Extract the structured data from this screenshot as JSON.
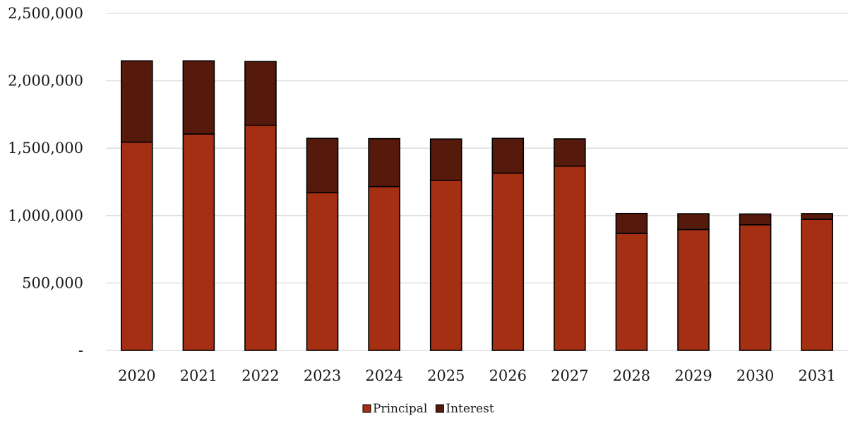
{
  "chart_data": {
    "type": "bar",
    "stacked": true,
    "title": "",
    "xlabel": "",
    "ylabel": "",
    "categories": [
      "2020",
      "2021",
      "2022",
      "2023",
      "2024",
      "2025",
      "2026",
      "2027",
      "2028",
      "2029",
      "2030",
      "2031"
    ],
    "series": [
      {
        "name": "Principal",
        "color": "#a52f12",
        "values": [
          1545000,
          1605000,
          1670000,
          1170000,
          1215000,
          1262000,
          1315000,
          1367000,
          868000,
          897000,
          932000,
          972000
        ]
      },
      {
        "name": "Interest",
        "color": "#551a0b",
        "values": [
          603000,
          543000,
          473000,
          403000,
          356000,
          306000,
          258000,
          202000,
          148000,
          117000,
          80000,
          43000
        ]
      }
    ],
    "ylim": [
      0,
      2500000
    ],
    "yticks": [
      0,
      500000,
      1000000,
      1500000,
      2000000,
      2500000
    ],
    "ytick_labels": [
      "-",
      "500,000",
      "1,000,000",
      "1,500,000",
      "2,000,000",
      "2,500,000"
    ],
    "grid": true,
    "legend_position": "bottom"
  }
}
